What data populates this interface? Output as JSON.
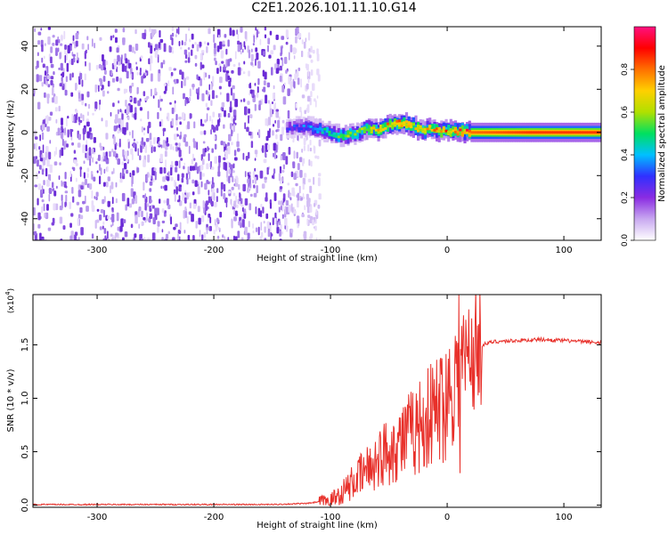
{
  "title": "C2E1.2026.101.11.10.G14",
  "chart_data": [
    {
      "type": "heatmap",
      "xlabel": "Height of straight line (km)",
      "ylabel": "Frequency (Hz)",
      "xlim": [
        -355,
        132
      ],
      "ylim": [
        -50,
        49
      ],
      "xticks": [
        -300,
        -200,
        -100,
        0,
        100
      ],
      "xtick_labels": [
        "-300",
        "-200",
        "-100",
        "0",
        "100"
      ],
      "yticks": [
        -40,
        -20,
        0,
        20,
        40
      ],
      "ytick_labels": [
        "-40",
        "-20",
        "0",
        "20",
        "40"
      ],
      "noise_region": {
        "x_range": [
          -355,
          -110
        ],
        "y_range": [
          -50,
          49
        ],
        "amplitude": 0.1
      },
      "signal_trace": [
        {
          "x": -138,
          "freq": 2.0,
          "amp": 0.25
        },
        {
          "x": -120,
          "freq": 2.5,
          "amp": 0.35
        },
        {
          "x": -105,
          "freq": 0.5,
          "amp": 0.45
        },
        {
          "x": -95,
          "freq": -1.5,
          "amp": 0.5
        },
        {
          "x": -80,
          "freq": -1.0,
          "amp": 0.55
        },
        {
          "x": -70,
          "freq": 2.0,
          "amp": 0.6
        },
        {
          "x": -60,
          "freq": 1.0,
          "amp": 0.65
        },
        {
          "x": -50,
          "freq": 3.5,
          "amp": 0.7
        },
        {
          "x": -40,
          "freq": 4.5,
          "amp": 0.75
        },
        {
          "x": -30,
          "freq": 3.0,
          "amp": 0.7
        },
        {
          "x": -22,
          "freq": 0.5,
          "amp": 0.7
        },
        {
          "x": -15,
          "freq": 2.0,
          "amp": 0.72
        },
        {
          "x": -5,
          "freq": 0.5,
          "amp": 0.75
        },
        {
          "x": 5,
          "freq": 1.0,
          "amp": 0.78
        },
        {
          "x": 15,
          "freq": 0.0,
          "amp": 0.8
        },
        {
          "x": 40,
          "freq": 0.0,
          "amp": 0.82
        },
        {
          "x": 70,
          "freq": 0.0,
          "amp": 0.85
        },
        {
          "x": 100,
          "freq": 0.0,
          "amp": 0.85
        },
        {
          "x": 132,
          "freq": 0.0,
          "amp": 0.85
        }
      ],
      "colorbar": {
        "label": "Normalized spectral amplitude",
        "ticks": [
          0.0,
          0.2,
          0.4,
          0.6,
          0.8
        ],
        "tick_labels": [
          "0.0",
          "0.2",
          "0.4",
          "0.6",
          "0.8"
        ],
        "range": [
          0,
          1
        ],
        "colors": [
          "#ffffff",
          "#c8a8f0",
          "#8a2be2",
          "#3030ff",
          "#00c0ff",
          "#00e060",
          "#b0e000",
          "#ffd000",
          "#ff7000",
          "#ff0000",
          "#ff1080"
        ]
      }
    },
    {
      "type": "line",
      "xlabel": "Height of straight line (km)",
      "ylabel": "SNR (10 * v/v)",
      "exponent_label": "(x10",
      "exponent_power": "4",
      "exponent_close": ")",
      "xlim": [
        -355,
        132
      ],
      "ylim": [
        -0.02,
        1.97
      ],
      "xticks": [
        -300,
        -200,
        -100,
        0,
        100
      ],
      "xtick_labels": [
        "-300",
        "-200",
        "-100",
        "0",
        "100"
      ],
      "yticks": [
        0.0,
        0.5,
        1.0,
        1.5
      ],
      "ytick_labels": [
        "0.0",
        "0.5",
        "1.0",
        "1.5"
      ],
      "color": "#e8302a",
      "series": [
        {
          "name": "SNR",
          "x": [
            -355,
            -300,
            -250,
            -200,
            -150,
            -120,
            -100,
            -90,
            -80,
            -70,
            -60,
            -50,
            -40,
            -30,
            -20,
            -10,
            0,
            10,
            20,
            30,
            40,
            60,
            80,
            100,
            132
          ],
          "y": [
            0.0,
            0.0,
            0.0,
            0.0,
            0.0,
            0.01,
            0.04,
            0.12,
            0.22,
            0.32,
            0.42,
            0.52,
            0.6,
            0.68,
            0.78,
            0.88,
            1.02,
            1.28,
            1.42,
            1.5,
            1.53,
            1.54,
            1.55,
            1.54,
            1.52
          ]
        }
      ],
      "spike": {
        "x": 10,
        "y": 1.97
      }
    }
  ]
}
